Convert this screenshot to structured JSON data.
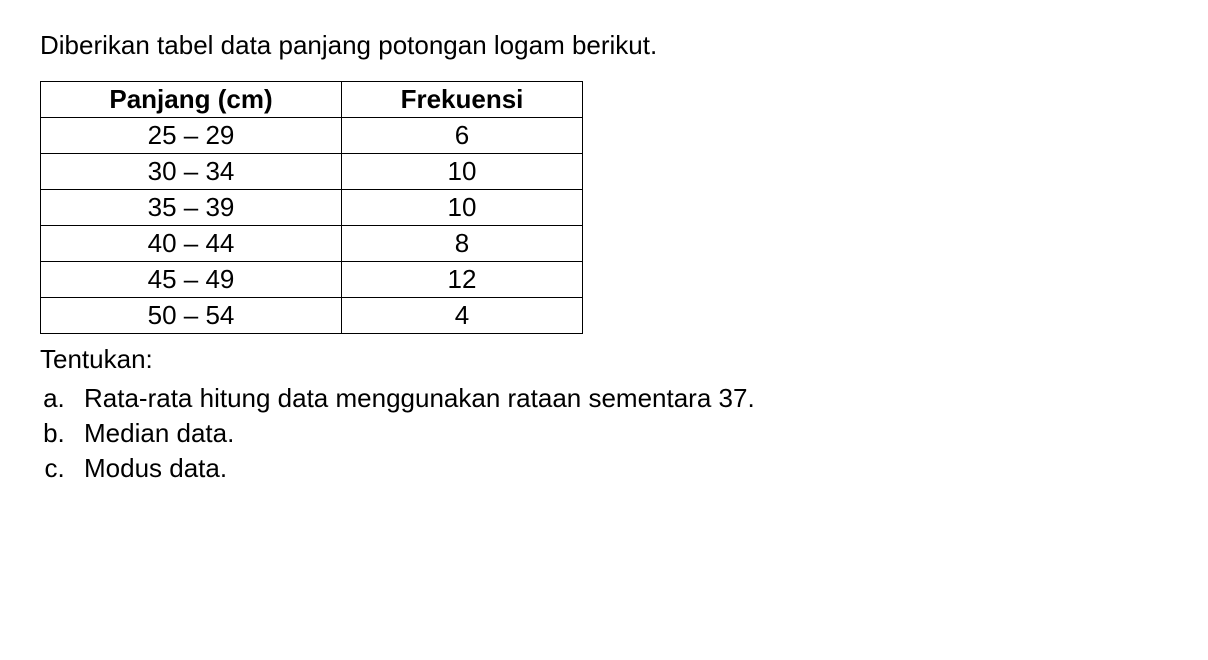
{
  "intro": "Diberikan tabel data panjang potongan logam berikut.",
  "table": {
    "header": {
      "col1": "Panjang (cm)",
      "col2": "Frekuensi"
    },
    "rows": [
      {
        "range": "25 – 29",
        "freq": "6"
      },
      {
        "range": "30 – 34",
        "freq": "10"
      },
      {
        "range": "35 – 39",
        "freq": "10"
      },
      {
        "range": "40 – 44",
        "freq": "8"
      },
      {
        "range": "45 – 49",
        "freq": "12"
      },
      {
        "range": "50 – 54",
        "freq": "4"
      }
    ],
    "col1_width": 260,
    "col2_width": 200,
    "border_color": "#000000",
    "text_align": "center",
    "header_fontweight": "bold"
  },
  "tentukan": "Tentukan:",
  "questions": [
    "Rata-rata hitung data menggunakan rataan sementara 37.",
    "Median data.",
    "Modus data."
  ],
  "style": {
    "font_family": "Arial",
    "font_size": 26,
    "text_color": "#000000",
    "background_color": "#ffffff"
  }
}
